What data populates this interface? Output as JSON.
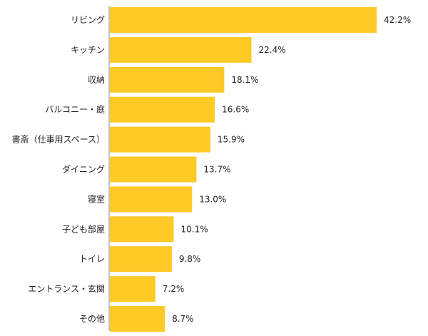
{
  "colors": {
    "bar": "#FFC926",
    "axis": "#888888",
    "text": "#222222"
  },
  "chart_data": {
    "type": "bar",
    "orientation": "horizontal",
    "categories": [
      "リビング",
      "キッチン",
      "収納",
      "バルコニー・庭",
      "書斎（仕事用スペース）",
      "ダイニング",
      "寝室",
      "子ども部屋",
      "トイレ",
      "エントランス・玄関",
      "その他"
    ],
    "values": [
      42.2,
      22.4,
      18.1,
      16.6,
      15.9,
      13.7,
      13.0,
      10.1,
      9.8,
      7.2,
      8.7
    ],
    "value_labels": [
      "42.2%",
      "22.4%",
      "18.1%",
      "16.6%",
      "15.9%",
      "13.7%",
      "13.0%",
      "10.1%",
      "9.8%",
      "7.2%",
      "8.7%"
    ],
    "xlim": [
      0,
      42.2
    ],
    "grid": false
  }
}
